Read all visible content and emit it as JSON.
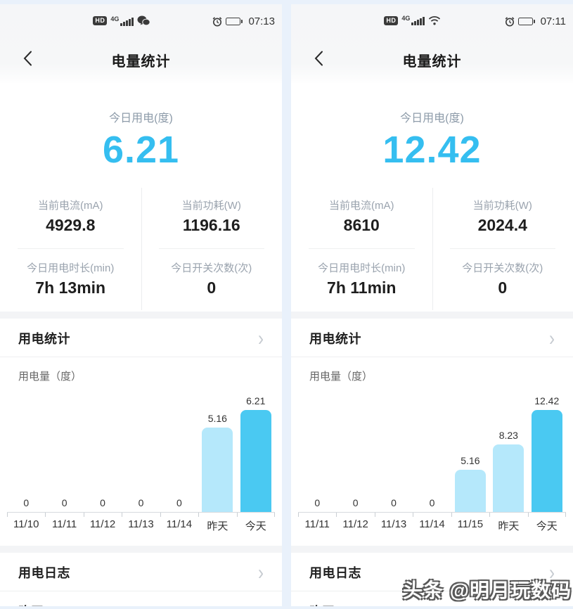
{
  "colors": {
    "accent": "#35BEF0",
    "bar_prev": "#B5E8FB",
    "bar_today": "#4AC9F2",
    "outer_bg": "#E9F1FB",
    "section_gap": "#F3F4F6"
  },
  "watermark": "头条 @明月玩数码",
  "panels": [
    {
      "status": {
        "badge": "HD",
        "network": "4G",
        "time": "07:13",
        "battery_level": 0.82
      },
      "header": {
        "title": "电量统计"
      },
      "summary": {
        "label": "今日用电(度)",
        "value": "6.21"
      },
      "stats": [
        {
          "label": "当前电流(mA)",
          "value": "4929.8"
        },
        {
          "label": "当前功耗(W)",
          "value": "1196.16"
        },
        {
          "label": "今日用电时长(min)",
          "value": "7h 13min"
        },
        {
          "label": "今日开关次数(次)",
          "value": "0"
        }
      ],
      "sections": {
        "usage_title": "用电统计",
        "usage_unit": "用电量（度）",
        "log_title": "用电日志",
        "log_first_row": "昨天"
      }
    },
    {
      "status": {
        "badge": "HD",
        "network": "4G",
        "time": "07:11",
        "battery_level": 0.28
      },
      "header": {
        "title": "电量统计"
      },
      "summary": {
        "label": "今日用电(度)",
        "value": "12.42"
      },
      "stats": [
        {
          "label": "当前电流(mA)",
          "value": "8610"
        },
        {
          "label": "当前功耗(W)",
          "value": "2024.4"
        },
        {
          "label": "今日用电时长(min)",
          "value": "7h 11min"
        },
        {
          "label": "今日开关次数(次)",
          "value": "0"
        }
      ],
      "sections": {
        "usage_title": "用电统计",
        "usage_unit": "用电量（度）",
        "log_title": "用电日志",
        "log_first_row": "昨天"
      }
    }
  ],
  "chart_data": [
    {
      "type": "bar",
      "title": "用电量（度）",
      "categories": [
        "11/10",
        "11/11",
        "11/12",
        "11/13",
        "11/14",
        "昨天",
        "今天"
      ],
      "values": [
        0,
        0,
        0,
        0,
        0,
        5.16,
        6.21
      ],
      "labels": [
        "0",
        "0",
        "0",
        "0",
        "0",
        "5.16",
        "6.21"
      ],
      "ylim": [
        0,
        6.21
      ],
      "grid": false,
      "legend": "none",
      "bar_color_previous": "#B5E8FB",
      "bar_color_today": "#4AC9F2"
    },
    {
      "type": "bar",
      "title": "用电量（度）",
      "categories": [
        "11/11",
        "11/12",
        "11/13",
        "11/14",
        "11/15",
        "昨天",
        "今天"
      ],
      "values": [
        0,
        0,
        0,
        0,
        5.16,
        8.23,
        12.42
      ],
      "labels": [
        "0",
        "0",
        "0",
        "0",
        "5.16",
        "8.23",
        "12.42"
      ],
      "ylim": [
        0,
        12.42
      ],
      "grid": false,
      "legend": "none",
      "bar_color_previous": "#B5E8FB",
      "bar_color_today": "#4AC9F2"
    }
  ]
}
